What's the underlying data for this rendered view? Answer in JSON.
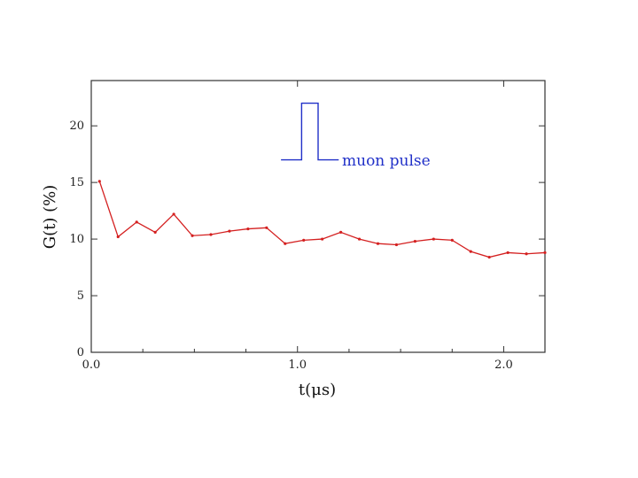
{
  "chart_data": {
    "type": "line",
    "xlabel": "t(μs)",
    "ylabel": "G(t) (%)",
    "xlim": [
      0.0,
      2.2
    ],
    "ylim": [
      0,
      24
    ],
    "x_ticks": [
      0.0,
      1.0,
      2.0
    ],
    "x_tick_labels": [
      "0.0",
      "1.0",
      "2.0"
    ],
    "x_minor_ticks": [
      0.25,
      0.5,
      0.75,
      1.25,
      1.5,
      1.75
    ],
    "y_ticks": [
      0,
      5,
      10,
      15,
      20
    ],
    "y_tick_labels": [
      "0",
      "5",
      "10",
      "15",
      "20"
    ],
    "grid": false,
    "colors": {
      "series": "#d42020",
      "pulse": "#2030c8",
      "axes": "#333333"
    },
    "series": [
      {
        "x": [
          0.04,
          0.13,
          0.22,
          0.31,
          0.4,
          0.49,
          0.58,
          0.67,
          0.76,
          0.85,
          0.94,
          1.03,
          1.12,
          1.21,
          1.3,
          1.39,
          1.48,
          1.57,
          1.66,
          1.75,
          1.84,
          1.93,
          2.02,
          2.11,
          2.2
        ],
        "values": [
          15.1,
          10.2,
          11.5,
          10.6,
          12.2,
          10.3,
          10.4,
          10.7,
          10.9,
          11.0,
          9.6,
          9.9,
          10.0,
          10.6,
          10.0,
          9.6,
          9.5,
          9.8,
          10.0,
          9.9,
          8.9,
          8.4,
          8.8,
          8.7,
          8.8
        ]
      }
    ],
    "annotation": {
      "label": "muon pulse",
      "pulse_x": [
        0.92,
        1.02,
        1.02,
        1.1,
        1.1,
        1.2
      ],
      "pulse_y": [
        17.0,
        17.0,
        22.0,
        22.0,
        17.0,
        17.0
      ]
    }
  }
}
